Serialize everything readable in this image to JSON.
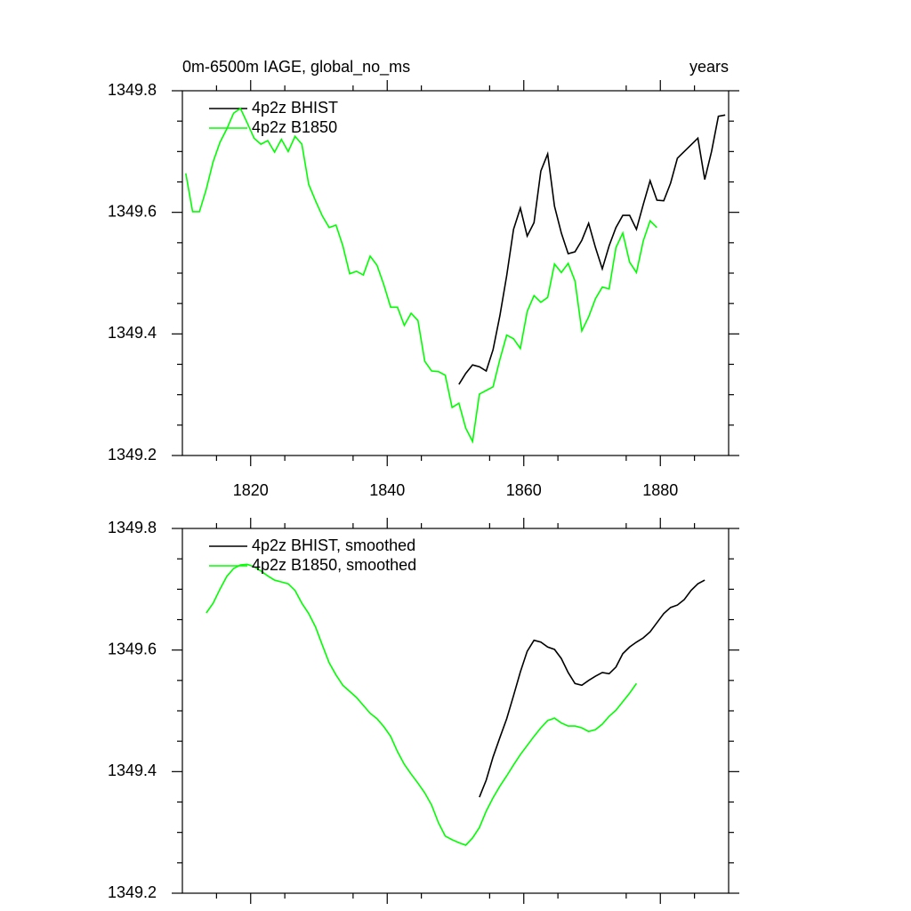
{
  "chart_data": [
    {
      "type": "line",
      "title": "0m-6500m IAGE, global_no_ms",
      "right_title": "years",
      "xlim": [
        1810,
        1890
      ],
      "xticks": [
        1820,
        1840,
        1860,
        1880
      ],
      "xminorticks": [
        1815,
        1825,
        1835,
        1845,
        1855,
        1865,
        1875,
        1885
      ],
      "ylim": [
        1349.2,
        1349.8
      ],
      "yticks": [
        1349.2,
        1349.4,
        1349.6,
        1349.8
      ],
      "yminorticks": [
        1349.25,
        1349.3,
        1349.35,
        1349.45,
        1349.5,
        1349.55,
        1349.65,
        1349.7,
        1349.75
      ],
      "series": [
        {
          "name": "4p2z BHIST",
          "color": "#000000",
          "x": [
            1850.5,
            1851.5,
            1852.5,
            1853.5,
            1854.5,
            1855.5,
            1856.5,
            1857.5,
            1858.5,
            1859.5,
            1860.5,
            1861.5,
            1862.5,
            1863.5,
            1864.5,
            1865.5,
            1866.5,
            1867.5,
            1868.5,
            1869.5,
            1870.5,
            1871.5,
            1872.5,
            1873.5,
            1874.5,
            1875.5,
            1876.5,
            1877.5,
            1878.5,
            1879.5,
            1880.5,
            1881.5,
            1882.5,
            1883.5,
            1884.5,
            1885.5,
            1886.5,
            1887.5,
            1888.5,
            1889.5
          ],
          "values": [
            1349.317,
            1349.335,
            1349.349,
            1349.346,
            1349.339,
            1349.374,
            1349.43,
            1349.496,
            1349.572,
            1349.607,
            1349.561,
            1349.583,
            1349.668,
            1349.696,
            1349.61,
            1349.566,
            1349.532,
            1349.535,
            1349.554,
            1349.582,
            1349.542,
            1349.507,
            1349.545,
            1349.575,
            1349.595,
            1349.595,
            1349.572,
            1349.613,
            1349.652,
            1349.62,
            1349.619,
            1349.648,
            1349.689,
            1349.7,
            1349.711,
            1349.722,
            1349.654,
            1349.7,
            1349.758,
            1349.76
          ]
        },
        {
          "name": "4p2z B1850",
          "color": "#00ff00",
          "x": [
            1810.5,
            1811.5,
            1812.5,
            1813.5,
            1814.5,
            1815.5,
            1816.5,
            1817.5,
            1818.5,
            1819.5,
            1820.5,
            1821.5,
            1822.5,
            1823.5,
            1824.5,
            1825.5,
            1826.5,
            1827.5,
            1828.5,
            1829.5,
            1830.5,
            1831.5,
            1832.5,
            1833.5,
            1834.5,
            1835.5,
            1836.5,
            1837.5,
            1838.5,
            1839.5,
            1840.5,
            1841.5,
            1842.5,
            1843.5,
            1844.5,
            1845.5,
            1846.5,
            1847.5,
            1848.5,
            1849.5,
            1850.5,
            1851.5,
            1852.5,
            1853.5,
            1854.5,
            1855.5,
            1856.5,
            1857.5,
            1858.5,
            1859.5,
            1860.5,
            1861.5,
            1862.5,
            1863.5,
            1864.5,
            1865.5,
            1866.5,
            1867.5,
            1868.5,
            1869.5,
            1870.5,
            1871.5,
            1872.5,
            1873.5,
            1874.5,
            1875.5,
            1876.5,
            1877.5,
            1878.5,
            1879.5
          ],
          "values": [
            1349.664,
            1349.601,
            1349.601,
            1349.638,
            1349.683,
            1349.715,
            1349.737,
            1349.763,
            1349.771,
            1349.747,
            1349.722,
            1349.712,
            1349.718,
            1349.699,
            1349.72,
            1349.7,
            1349.725,
            1349.712,
            1349.646,
            1349.619,
            1349.594,
            1349.575,
            1349.579,
            1349.545,
            1349.499,
            1349.503,
            1349.497,
            1349.528,
            1349.513,
            1349.481,
            1349.444,
            1349.444,
            1349.414,
            1349.434,
            1349.422,
            1349.355,
            1349.339,
            1349.338,
            1349.332,
            1349.279,
            1349.286,
            1349.245,
            1349.223,
            1349.301,
            1349.307,
            1349.313,
            1349.358,
            1349.398,
            1349.392,
            1349.376,
            1349.437,
            1349.463,
            1349.452,
            1349.46,
            1349.515,
            1349.501,
            1349.516,
            1349.487,
            1349.405,
            1349.428,
            1349.458,
            1349.477,
            1349.474,
            1349.542,
            1349.566,
            1349.518,
            1349.501,
            1349.553,
            1349.586,
            1349.575
          ]
        }
      ]
    },
    {
      "type": "line",
      "xlim": [
        1810,
        1890
      ],
      "xticks": [
        1820,
        1840,
        1860,
        1880
      ],
      "xminorticks": [
        1815,
        1825,
        1835,
        1845,
        1855,
        1865,
        1875,
        1885
      ],
      "xticklabels": false,
      "ylim": [
        1349.2,
        1349.8
      ],
      "yticks": [
        1349.2,
        1349.4,
        1349.6,
        1349.8
      ],
      "yminorticks": [
        1349.25,
        1349.3,
        1349.35,
        1349.45,
        1349.5,
        1349.55,
        1349.65,
        1349.7,
        1349.75
      ],
      "series": [
        {
          "name": "4p2z BHIST, smoothed",
          "color": "#000000",
          "x": [
            1853.5,
            1854.5,
            1855.5,
            1856.5,
            1857.5,
            1858.5,
            1859.5,
            1860.5,
            1861.5,
            1862.5,
            1863.5,
            1864.5,
            1865.5,
            1866.5,
            1867.5,
            1868.5,
            1869.5,
            1870.5,
            1871.5,
            1872.5,
            1873.5,
            1874.5,
            1875.5,
            1876.5,
            1877.5,
            1878.5,
            1879.5,
            1880.5,
            1881.5,
            1882.5,
            1883.5,
            1884.5,
            1885.5,
            1886.5
          ],
          "values": [
            1349.358,
            1349.386,
            1349.424,
            1349.456,
            1349.487,
            1349.525,
            1349.564,
            1349.598,
            1349.616,
            1349.613,
            1349.605,
            1349.601,
            1349.586,
            1349.563,
            1349.545,
            1349.542,
            1349.55,
            1349.557,
            1349.563,
            1349.561,
            1349.572,
            1349.594,
            1349.605,
            1349.613,
            1349.62,
            1349.63,
            1349.645,
            1349.66,
            1349.67,
            1349.674,
            1349.683,
            1349.698,
            1349.709,
            1349.715
          ]
        },
        {
          "name": "4p2z B1850, smoothed",
          "color": "#00ff00",
          "x": [
            1813.5,
            1814.5,
            1815.5,
            1816.5,
            1817.5,
            1818.5,
            1819.5,
            1820.5,
            1821.5,
            1822.5,
            1823.5,
            1824.5,
            1825.5,
            1826.5,
            1827.5,
            1828.5,
            1829.5,
            1830.5,
            1831.5,
            1832.5,
            1833.5,
            1834.5,
            1835.5,
            1836.5,
            1837.5,
            1838.5,
            1839.5,
            1840.5,
            1841.5,
            1842.5,
            1843.5,
            1844.5,
            1845.5,
            1846.5,
            1847.5,
            1848.5,
            1849.5,
            1850.5,
            1851.5,
            1852.5,
            1853.5,
            1854.5,
            1855.5,
            1856.5,
            1857.5,
            1858.5,
            1859.5,
            1860.5,
            1861.5,
            1862.5,
            1863.5,
            1864.5,
            1865.5,
            1866.5,
            1867.5,
            1868.5,
            1869.5,
            1870.5,
            1871.5,
            1872.5,
            1873.5,
            1874.5,
            1875.5,
            1876.5
          ],
          "values": [
            1349.661,
            1349.677,
            1349.7,
            1349.721,
            1349.734,
            1349.74,
            1349.741,
            1349.737,
            1349.73,
            1349.722,
            1349.715,
            1349.712,
            1349.709,
            1349.698,
            1349.677,
            1349.66,
            1349.638,
            1349.608,
            1349.579,
            1349.559,
            1349.542,
            1349.532,
            1349.522,
            1349.509,
            1349.496,
            1349.487,
            1349.474,
            1349.458,
            1349.433,
            1349.412,
            1349.396,
            1349.381,
            1349.365,
            1349.345,
            1349.316,
            1349.294,
            1349.288,
            1349.283,
            1349.279,
            1349.291,
            1349.308,
            1349.335,
            1349.357,
            1349.376,
            1349.393,
            1349.411,
            1349.428,
            1349.443,
            1349.458,
            1349.472,
            1349.484,
            1349.488,
            1349.48,
            1349.475,
            1349.475,
            1349.472,
            1349.466,
            1349.469,
            1349.478,
            1349.491,
            1349.501,
            1349.515,
            1349.529,
            1349.545
          ]
        }
      ]
    }
  ]
}
